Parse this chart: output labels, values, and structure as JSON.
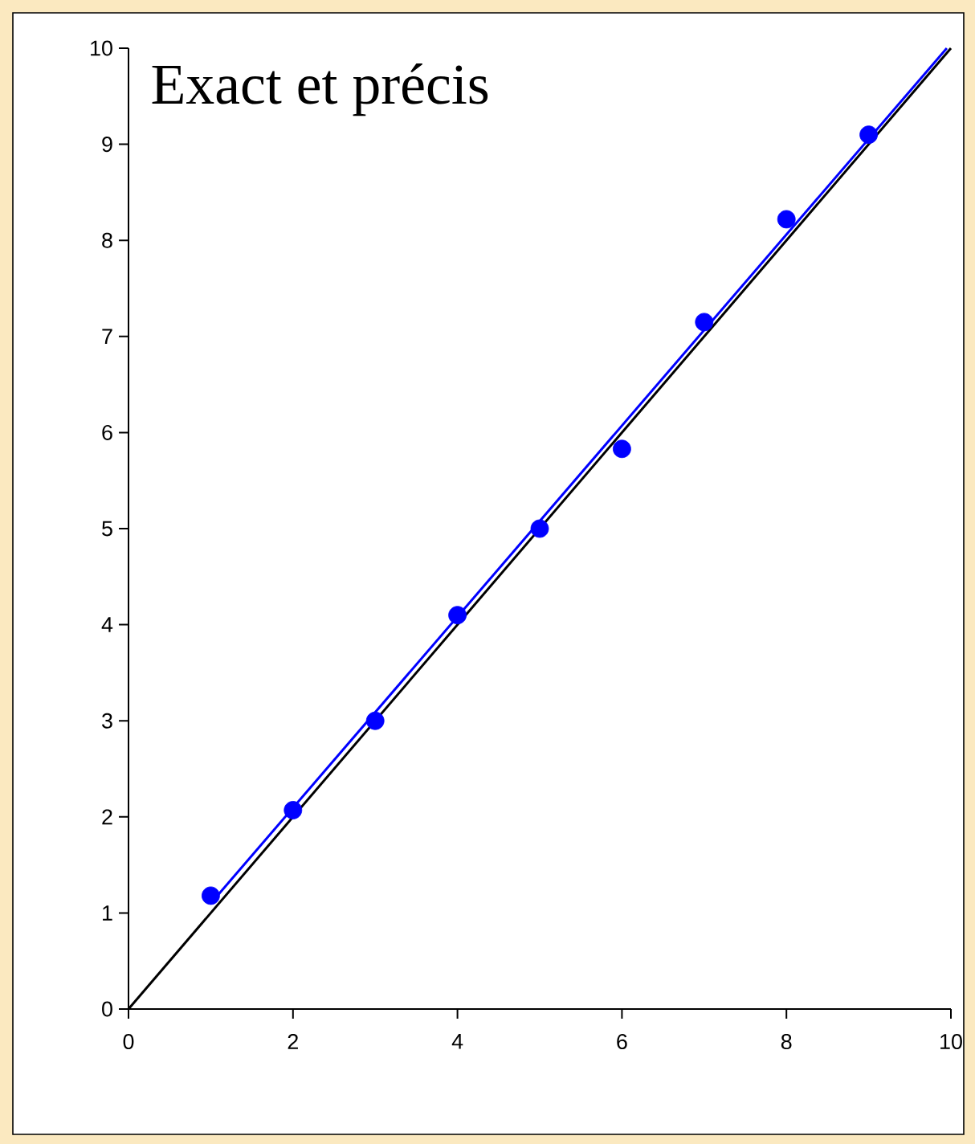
{
  "chart_data": {
    "type": "scatter",
    "title": "Exact et précis",
    "series": [
      {
        "color": "#0000ff",
        "x": [
          1,
          2,
          3,
          4,
          5,
          6,
          7,
          8,
          9
        ],
        "values": [
          1.18,
          2.07,
          3.0,
          4.1,
          5.0,
          5.83,
          7.15,
          8.22,
          9.1
        ]
      },
      {
        "type": "line",
        "marker": "none",
        "color": "#000000",
        "x": [
          0,
          10
        ],
        "values": [
          0,
          10
        ]
      },
      {
        "type": "line",
        "marker": "none",
        "color": "#0000ff",
        "x": [
          1,
          9.95
        ],
        "values": [
          1.1,
          10
        ]
      }
    ],
    "xlim": [
      0,
      10
    ],
    "ylim": [
      0,
      10
    ],
    "xticks": [
      0,
      2,
      4,
      6,
      8,
      10
    ],
    "yticks": [
      0,
      1,
      2,
      3,
      4,
      5,
      6,
      7,
      8,
      9,
      10
    ],
    "marker": "circle",
    "grid": false
  }
}
